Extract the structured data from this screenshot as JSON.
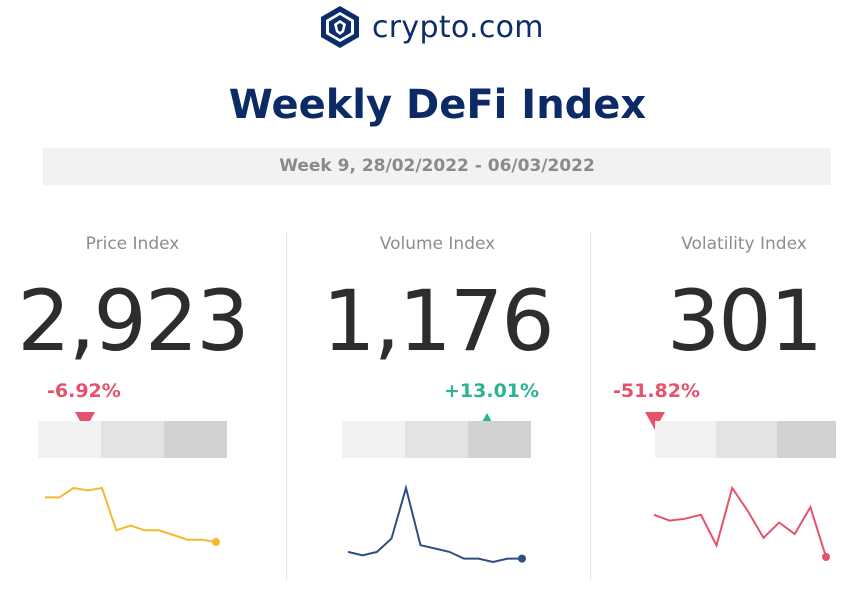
{
  "brand": {
    "name": "crypto.com",
    "logo_icon": "crypto-com-lion-shield-icon",
    "color": "#0c2d6b"
  },
  "title": "Weekly DeFi Index",
  "week_label": "Week 9, 28/02/2022 - 06/03/2022",
  "colors": {
    "negative": "#e5526b",
    "positive": "#2bb394",
    "gauge_light": "#f2f2f2",
    "gauge_mid": "#e3e3e3",
    "gauge_dark": "#d2d2d2"
  },
  "indices": [
    {
      "label": "Price Index",
      "value": "2,923",
      "change": "-6.92%",
      "direction": "down",
      "gauge_level": 0.2,
      "spark_color": "#f5b82e",
      "spark": [
        76,
        76,
        80,
        79,
        80,
        62,
        64,
        62,
        62,
        60,
        58,
        58,
        57
      ]
    },
    {
      "label": "Volume Index",
      "value": "1,176",
      "change": "+13.01%",
      "direction": "up",
      "gauge_level": 0.77,
      "spark_color": "#2f4f80",
      "spark": [
        64,
        63,
        64,
        68,
        83,
        66,
        65,
        64,
        62,
        62,
        61,
        62,
        62
      ]
    },
    {
      "label": "Volatility Index",
      "value": "301",
      "change": "-51.82%",
      "direction": "down",
      "gauge_level": 0.0,
      "spark_color": "#e5526b",
      "spark": [
        260,
        245,
        250,
        260,
        180,
        330,
        270,
        200,
        240,
        210,
        280,
        150
      ]
    }
  ]
}
